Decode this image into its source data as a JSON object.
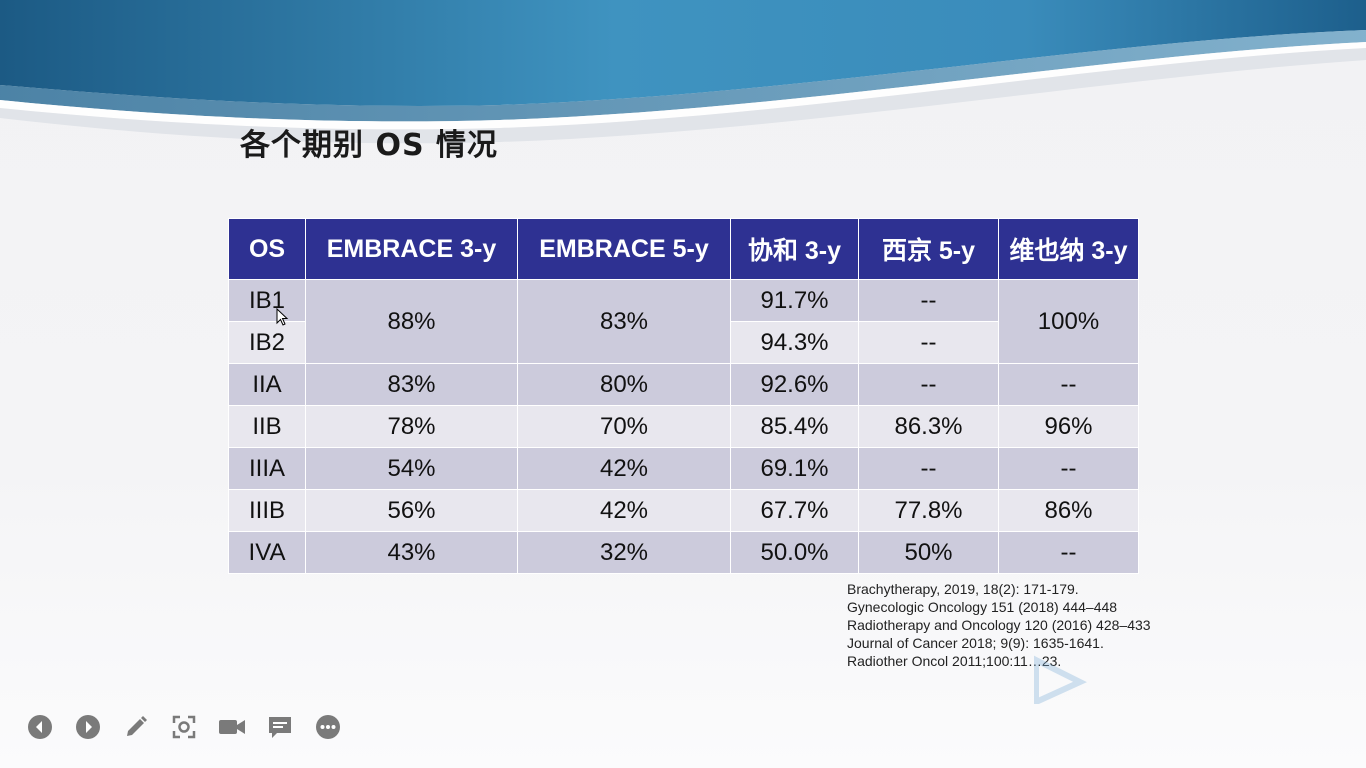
{
  "slide": {
    "title": "各个期别 OS 情况"
  },
  "table": {
    "headers": [
      "OS",
      "EMBRACE 3-y",
      "EMBRACE 5-y",
      "协和 3-y",
      "西京 5-y",
      "维也纳 3-y"
    ],
    "merged": {
      "stages": [
        "IB1",
        "IB2"
      ],
      "embrace3": "88%",
      "embrace5": "83%",
      "xiehe": [
        "91.7%",
        "94.3%"
      ],
      "xijing": [
        "--",
        "--"
      ],
      "vienna": "100%"
    },
    "rows": [
      [
        "IIA",
        "83%",
        "80%",
        "92.6%",
        "--",
        "--"
      ],
      [
        "IIB",
        "78%",
        "70%",
        "85.4%",
        "86.3%",
        "96%"
      ],
      [
        "IIIA",
        "54%",
        "42%",
        "69.1%",
        "--",
        "--"
      ],
      [
        "IIIB",
        "56%",
        "42%",
        "67.7%",
        "77.8%",
        "86%"
      ],
      [
        "IVA",
        "43%",
        "32%",
        "50.0%",
        "50%",
        "--"
      ]
    ]
  },
  "references": [
    "Brachytherapy, 2019, 18(2): 171-179.",
    "Gynecologic Oncology 151 (2018) 444–448",
    "Radiotherapy and Oncology 120 (2016) 428–433",
    "Journal of Cancer 2018; 9(9): 1635-1641.",
    "Radiother Oncol 2011;100:11…23."
  ],
  "toolbar": [
    "prev-icon",
    "next-icon",
    "pen-icon",
    "focus-icon",
    "camera-icon",
    "comment-icon",
    "more-icon"
  ],
  "colors": {
    "header_bg": "#2e3192",
    "row_dark": "#cccbdc",
    "row_light": "#e8e7ee",
    "banner_dark": "#1f5f87",
    "banner_light": "#4a9cc6"
  }
}
